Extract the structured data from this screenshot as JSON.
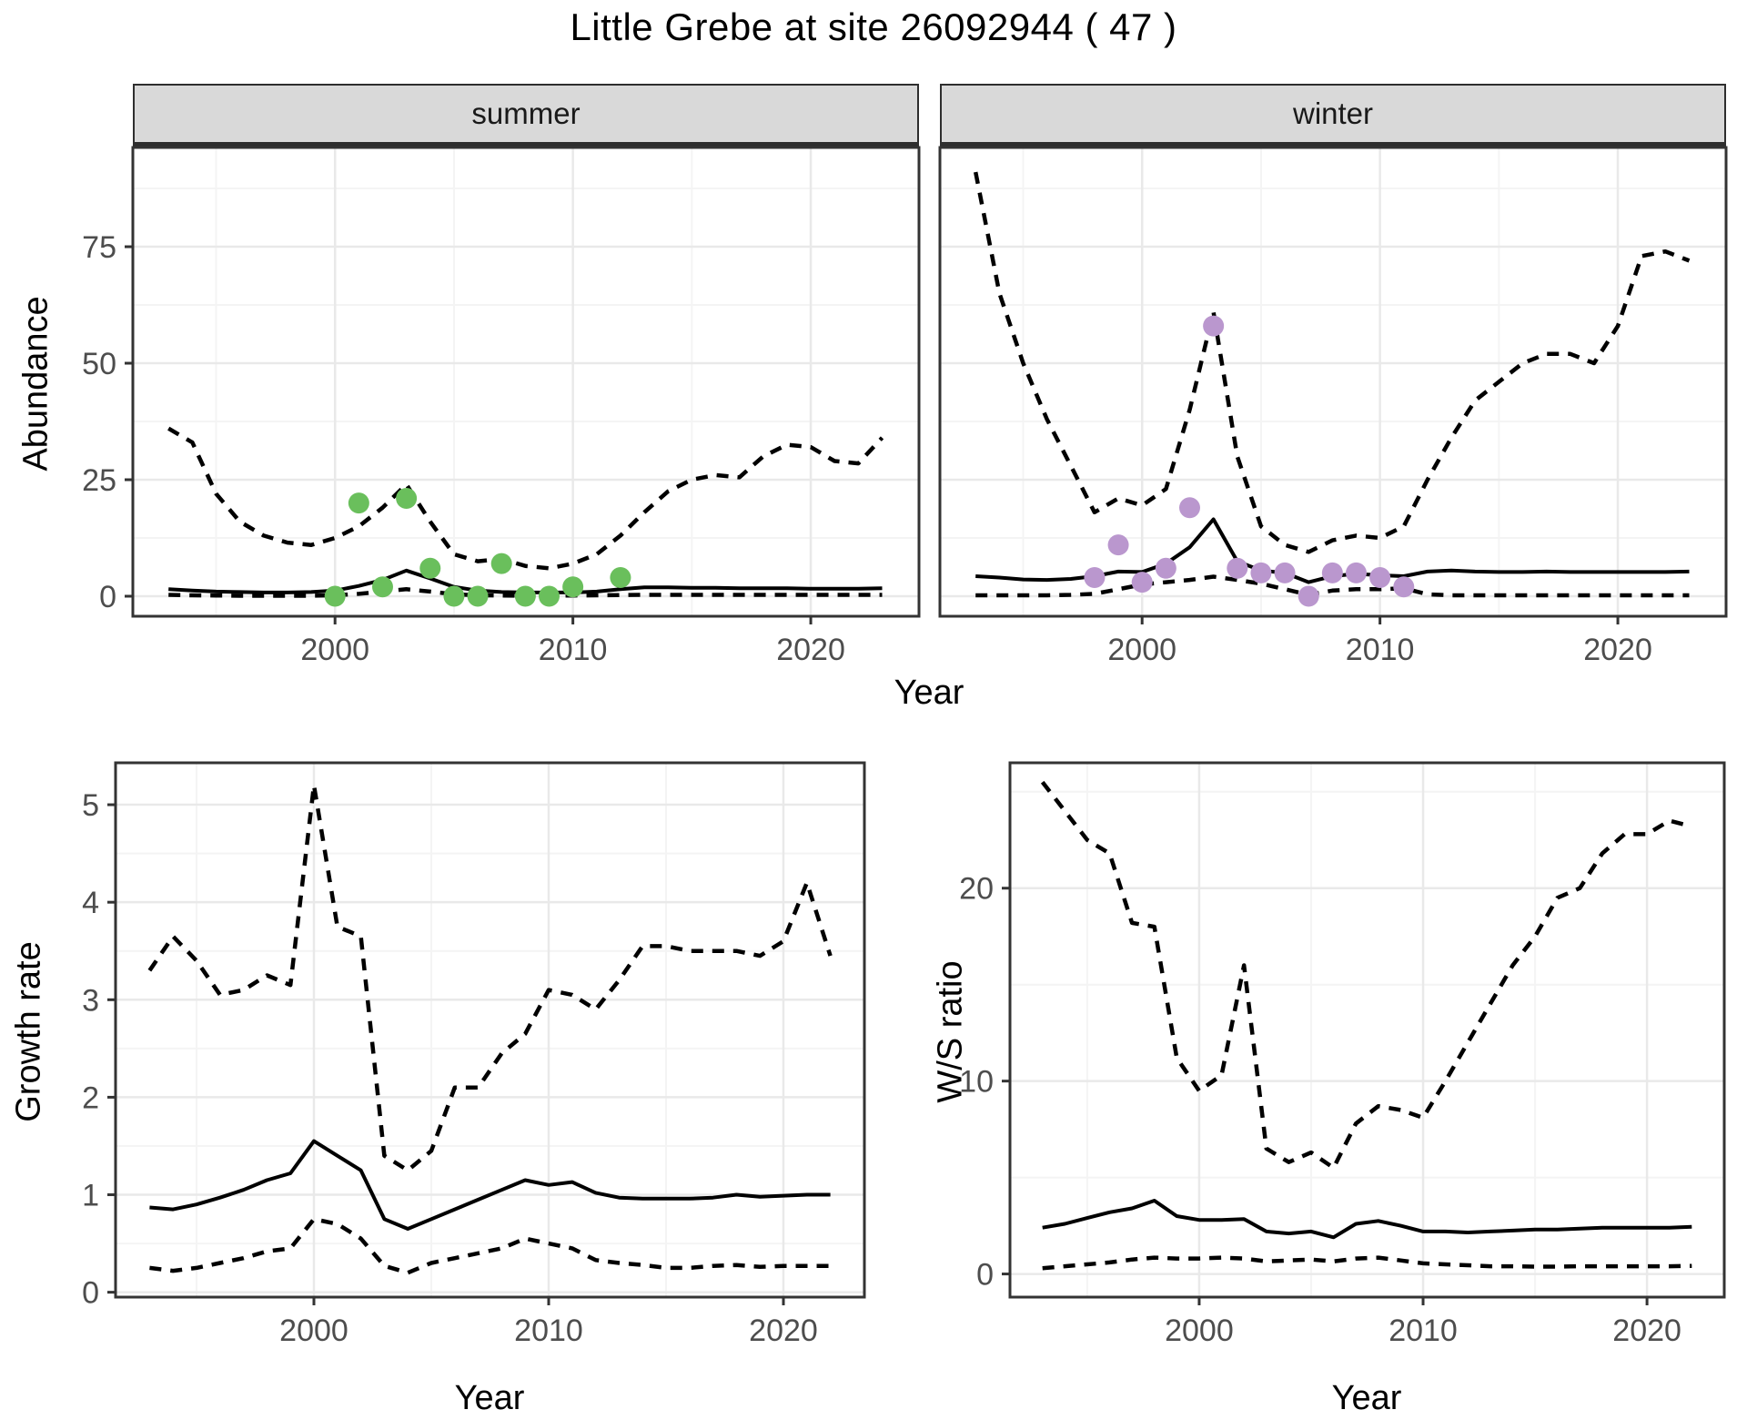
{
  "title": "Little Grebe at site 26092944 ( 47 )",
  "facets": [
    "summer",
    "winter"
  ],
  "labels": {
    "year": "Year",
    "abundance": "Abundance",
    "growth_rate": "Growth rate",
    "ws_ratio": "W/S ratio"
  },
  "colors": {
    "line": "#000000",
    "summer_point": "#6abf5c",
    "winter_point": "#ba97ce",
    "grid_major": "#e9e9e9",
    "grid_minor": "#f4f4f4",
    "panel_border": "#333333",
    "tick_mark": "#333333",
    "tick_label": "#4d4d4d",
    "strip_bg": "#d9d9d9",
    "background": "#ffffff"
  },
  "chart_data": [
    {
      "id": "abundance-summer",
      "type": "line",
      "facet": "summer",
      "xlabel": "Year",
      "ylabel": "Abundance",
      "x": [
        1993,
        1994,
        1995,
        1996,
        1997,
        1998,
        1999,
        2000,
        2001,
        2002,
        2003,
        2004,
        2005,
        2006,
        2007,
        2008,
        2009,
        2010,
        2011,
        2012,
        2013,
        2014,
        2015,
        2016,
        2017,
        2018,
        2019,
        2020,
        2021,
        2022,
        2023
      ],
      "series": [
        {
          "name": "upper CI",
          "style": "dashed",
          "values": [
            36,
            33,
            22,
            16,
            13,
            11.5,
            11,
            12.5,
            15,
            19,
            24,
            16,
            9,
            7.5,
            8,
            6.5,
            6,
            7,
            9,
            13,
            18,
            22.5,
            25,
            26,
            25.5,
            30,
            32.5,
            32,
            29,
            28.5,
            34
          ]
        },
        {
          "name": "median",
          "style": "solid",
          "values": [
            1.5,
            1.2,
            1.0,
            0.9,
            0.8,
            0.8,
            0.9,
            1.2,
            2.2,
            3.5,
            5.5,
            3.8,
            2.0,
            1.2,
            0.9,
            0.8,
            0.8,
            0.8,
            1.0,
            1.5,
            1.9,
            1.9,
            1.8,
            1.8,
            1.7,
            1.7,
            1.7,
            1.6,
            1.6,
            1.6,
            1.7
          ]
        },
        {
          "name": "lower CI",
          "style": "dashed",
          "values": [
            0.3,
            0.2,
            0.15,
            0.1,
            0.1,
            0.1,
            0.1,
            0.2,
            0.5,
            1.0,
            1.5,
            1.0,
            0.4,
            0.2,
            0.15,
            0.1,
            0.1,
            0.15,
            0.2,
            0.25,
            0.3,
            0.3,
            0.3,
            0.3,
            0.3,
            0.3,
            0.3,
            0.3,
            0.3,
            0.3,
            0.3
          ]
        }
      ],
      "points": {
        "name": "observed summer counts",
        "color": "#6abf5c",
        "data": [
          [
            2000,
            0
          ],
          [
            2001,
            20
          ],
          [
            2002,
            2
          ],
          [
            2003,
            21
          ],
          [
            2004,
            6
          ],
          [
            2005,
            0
          ],
          [
            2006,
            0
          ],
          [
            2007,
            7
          ],
          [
            2008,
            0
          ],
          [
            2009,
            0
          ],
          [
            2010,
            2
          ],
          [
            2012,
            4
          ]
        ]
      },
      "xlim": [
        1991.5,
        2024.55
      ],
      "ylim": [
        -4.3,
        96.3
      ],
      "xticks": [
        2000,
        2010,
        2020
      ],
      "xminor": [
        1995,
        2005,
        2015
      ],
      "yticks": [
        0,
        25,
        50,
        75
      ],
      "yminor": [
        12.5,
        37.5,
        62.5,
        87.5
      ],
      "show_ytick_labels": true,
      "grid": true,
      "legend_position": "none"
    },
    {
      "id": "abundance-winter",
      "type": "line",
      "facet": "winter",
      "xlabel": "Year",
      "ylabel": "Abundance",
      "x": [
        1993,
        1994,
        1995,
        1996,
        1997,
        1998,
        1999,
        2000,
        2001,
        2002,
        2003,
        2004,
        2005,
        2006,
        2007,
        2008,
        2009,
        2010,
        2011,
        2012,
        2013,
        2014,
        2015,
        2016,
        2017,
        2018,
        2019,
        2020,
        2021,
        2022,
        2023
      ],
      "series": [
        {
          "name": "upper CI",
          "style": "dashed",
          "values": [
            91,
            65,
            50,
            38,
            28,
            18,
            21,
            19.5,
            23,
            40,
            61,
            30,
            15,
            11,
            9.5,
            12,
            13,
            12.5,
            15,
            25,
            34,
            42,
            46,
            50,
            52,
            52,
            50,
            58,
            73,
            74,
            72
          ]
        },
        {
          "name": "median",
          "style": "solid",
          "values": [
            4.3,
            4.0,
            3.6,
            3.5,
            3.7,
            4.3,
            5.3,
            5.2,
            7.0,
            10.5,
            16.5,
            7.5,
            5.5,
            5.0,
            3.0,
            4.3,
            4.8,
            4.5,
            4.3,
            5.3,
            5.5,
            5.3,
            5.2,
            5.2,
            5.3,
            5.2,
            5.2,
            5.2,
            5.2,
            5.2,
            5.3
          ]
        },
        {
          "name": "lower CI",
          "style": "dashed",
          "values": [
            0.2,
            0.2,
            0.2,
            0.2,
            0.3,
            0.5,
            1.5,
            2.5,
            3.0,
            3.5,
            4.2,
            3.5,
            2.7,
            1.5,
            0.3,
            1.2,
            1.5,
            1.5,
            1.7,
            0.4,
            0.2,
            0.2,
            0.2,
            0.2,
            0.2,
            0.2,
            0.2,
            0.2,
            0.2,
            0.2,
            0.2
          ]
        }
      ],
      "points": {
        "name": "observed winter counts",
        "color": "#ba97ce",
        "data": [
          [
            1998,
            4
          ],
          [
            1999,
            11
          ],
          [
            2000,
            3
          ],
          [
            2001,
            6
          ],
          [
            2002,
            19
          ],
          [
            2003,
            58
          ],
          [
            2004,
            6
          ],
          [
            2005,
            5
          ],
          [
            2006,
            5
          ],
          [
            2007,
            0
          ],
          [
            2008,
            5
          ],
          [
            2009,
            5
          ],
          [
            2010,
            4
          ],
          [
            2011,
            2
          ]
        ]
      },
      "xlim": [
        1991.5,
        2024.55
      ],
      "ylim": [
        -4.3,
        96.3
      ],
      "xticks": [
        2000,
        2010,
        2020
      ],
      "xminor": [
        1995,
        2005,
        2015
      ],
      "yticks": [
        0,
        25,
        50,
        75
      ],
      "yminor": [
        12.5,
        37.5,
        62.5,
        87.5
      ],
      "show_ytick_labels": false,
      "grid": true,
      "legend_position": "none"
    },
    {
      "id": "growth-rate",
      "type": "line",
      "facet": null,
      "xlabel": "Year",
      "ylabel": "Growth rate",
      "x": [
        1993,
        1994,
        1995,
        1996,
        1997,
        1998,
        1999,
        2000,
        2001,
        2002,
        2003,
        2004,
        2005,
        2006,
        2007,
        2008,
        2009,
        2010,
        2011,
        2012,
        2013,
        2014,
        2015,
        2016,
        2017,
        2018,
        2019,
        2020,
        2021,
        2022
      ],
      "series": [
        {
          "name": "upper CI",
          "style": "dashed",
          "values": [
            3.3,
            3.65,
            3.4,
            3.05,
            3.1,
            3.25,
            3.15,
            5.2,
            3.75,
            3.65,
            1.4,
            1.25,
            1.45,
            2.1,
            2.1,
            2.45,
            2.65,
            3.1,
            3.05,
            2.9,
            3.2,
            3.55,
            3.55,
            3.5,
            3.5,
            3.5,
            3.45,
            3.6,
            4.2,
            3.45
          ]
        },
        {
          "name": "median",
          "style": "solid",
          "values": [
            0.87,
            0.85,
            0.9,
            0.97,
            1.05,
            1.15,
            1.22,
            1.55,
            1.4,
            1.25,
            0.75,
            0.65,
            0.75,
            0.85,
            0.95,
            1.05,
            1.15,
            1.1,
            1.13,
            1.02,
            0.97,
            0.96,
            0.96,
            0.96,
            0.97,
            1.0,
            0.98,
            0.99,
            1.0,
            1.0
          ]
        },
        {
          "name": "lower CI",
          "style": "dashed",
          "values": [
            0.25,
            0.22,
            0.25,
            0.3,
            0.35,
            0.42,
            0.45,
            0.75,
            0.7,
            0.55,
            0.27,
            0.2,
            0.3,
            0.35,
            0.4,
            0.45,
            0.55,
            0.5,
            0.45,
            0.33,
            0.3,
            0.28,
            0.25,
            0.25,
            0.27,
            0.28,
            0.26,
            0.27,
            0.27,
            0.27
          ]
        }
      ],
      "points": null,
      "xlim": [
        1991.55,
        2023.45
      ],
      "ylim": [
        -0.05,
        5.43
      ],
      "xticks": [
        2000,
        2010,
        2020
      ],
      "xminor": [
        1995,
        2005,
        2015
      ],
      "yticks": [
        0,
        1,
        2,
        3,
        4,
        5
      ],
      "yminor": [
        0.5,
        1.5,
        2.5,
        3.5,
        4.5
      ],
      "show_ytick_labels": true,
      "grid": true,
      "legend_position": "none"
    },
    {
      "id": "ws-ratio",
      "type": "line",
      "facet": null,
      "xlabel": "Year",
      "ylabel": "W/S ratio",
      "x": [
        1993,
        1994,
        1995,
        1996,
        1997,
        1998,
        1999,
        2000,
        2001,
        2002,
        2003,
        2004,
        2005,
        2006,
        2007,
        2008,
        2009,
        2010,
        2011,
        2012,
        2013,
        2014,
        2015,
        2016,
        2017,
        2018,
        2019,
        2020,
        2021,
        2022
      ],
      "series": [
        {
          "name": "upper CI",
          "style": "dashed",
          "values": [
            25.5,
            24,
            22.5,
            21.8,
            18.2,
            18,
            11.2,
            9.5,
            10.3,
            16,
            6.5,
            5.8,
            6.3,
            5.5,
            7.8,
            8.7,
            8.5,
            8.1,
            10,
            12,
            14,
            16,
            17.5,
            19.5,
            20,
            21.8,
            22.8,
            22.8,
            23.5,
            23.2
          ]
        },
        {
          "name": "median",
          "style": "solid",
          "values": [
            2.4,
            2.6,
            2.9,
            3.2,
            3.4,
            3.8,
            3.0,
            2.8,
            2.8,
            2.85,
            2.2,
            2.1,
            2.2,
            1.9,
            2.6,
            2.75,
            2.5,
            2.2,
            2.2,
            2.15,
            2.2,
            2.25,
            2.3,
            2.3,
            2.35,
            2.4,
            2.4,
            2.4,
            2.4,
            2.45
          ]
        },
        {
          "name": "lower CI",
          "style": "dashed",
          "values": [
            0.3,
            0.4,
            0.5,
            0.6,
            0.75,
            0.85,
            0.8,
            0.8,
            0.85,
            0.8,
            0.65,
            0.7,
            0.75,
            0.65,
            0.8,
            0.85,
            0.7,
            0.55,
            0.5,
            0.45,
            0.4,
            0.4,
            0.38,
            0.38,
            0.4,
            0.4,
            0.4,
            0.4,
            0.4,
            0.42
          ]
        }
      ],
      "points": null,
      "xlim": [
        1991.55,
        2023.45
      ],
      "ylim": [
        -1.2,
        26.5
      ],
      "xticks": [
        2000,
        2010,
        2020
      ],
      "xminor": [
        1995,
        2005,
        2015
      ],
      "yticks": [
        0,
        10,
        20
      ],
      "yminor": [
        5,
        15,
        25
      ],
      "show_ytick_labels": true,
      "grid": true,
      "legend_position": "none"
    }
  ]
}
